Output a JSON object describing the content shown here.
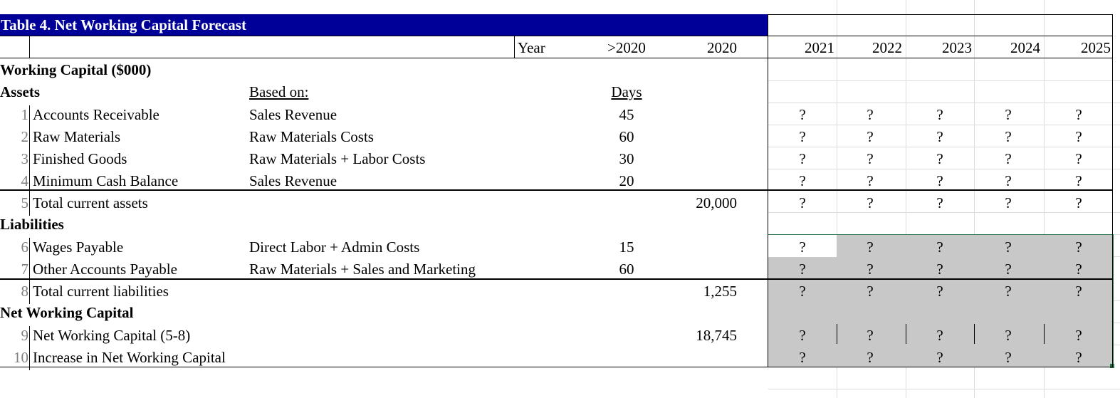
{
  "title": "Table 4. Net Working Capital Forecast",
  "header": {
    "year_label": "Year",
    "col_prior": ">2020",
    "col_base": "2020",
    "years": [
      "2021",
      "2022",
      "2023",
      "2024",
      "2025"
    ]
  },
  "sections": {
    "working_capital": "Working Capital ($000)",
    "assets": "Assets",
    "liabilities": "Liabilities",
    "net_working_capital": "Net Working Capital"
  },
  "subheaders": {
    "based_on": "Based on:",
    "days": "Days"
  },
  "rows": [
    {
      "num": "1",
      "label": "Accounts Receivable",
      "basis": "Sales Revenue",
      "days": "45",
      "base": "",
      "forecast": [
        "?",
        "?",
        "?",
        "?",
        "?"
      ]
    },
    {
      "num": "2",
      "label": "Raw Materials",
      "basis": "Raw Materials Costs",
      "days": "60",
      "base": "",
      "forecast": [
        "?",
        "?",
        "?",
        "?",
        "?"
      ]
    },
    {
      "num": "3",
      "label": "Finished Goods",
      "basis": "Raw Materials + Labor Costs",
      "days": "30",
      "base": "",
      "forecast": [
        "?",
        "?",
        "?",
        "?",
        "?"
      ]
    },
    {
      "num": "4",
      "label": "Minimum Cash Balance",
      "basis": "Sales Revenue",
      "days": "20",
      "base": "",
      "forecast": [
        "?",
        "?",
        "?",
        "?",
        "?"
      ]
    },
    {
      "num": "5",
      "label": "Total current assets",
      "basis": "",
      "days": "",
      "base": "20,000",
      "forecast": [
        "?",
        "?",
        "?",
        "?",
        "?"
      ]
    },
    {
      "num": "6",
      "label": "Wages Payable",
      "basis": "Direct Labor + Admin Costs",
      "days": "15",
      "base": "",
      "forecast": [
        "?",
        "?",
        "?",
        "?",
        "?"
      ]
    },
    {
      "num": "7",
      "label": "Other Accounts Payable",
      "basis": "Raw Materials + Sales and Marketing",
      "days": "60",
      "base": "",
      "forecast": [
        "?",
        "?",
        "?",
        "?",
        "?"
      ]
    },
    {
      "num": "8",
      "label": "Total current liabilities",
      "basis": "",
      "days": "",
      "base": "1,255",
      "forecast": [
        "?",
        "?",
        "?",
        "?",
        "?"
      ]
    },
    {
      "num": "9",
      "label": "Net Working Capital (5-8)",
      "basis": "",
      "days": "",
      "base": "18,745",
      "forecast": [
        "?",
        "?",
        "?",
        "?",
        "?"
      ]
    },
    {
      "num": "10",
      "label": "Increase in Net Working Capital",
      "basis": "",
      "days": "",
      "base": "",
      "forecast": [
        "?",
        "?",
        "?",
        "?",
        "?"
      ]
    }
  ],
  "colors": {
    "title_bg": "#000099",
    "title_fg": "#ffffff",
    "selection_fill": "#c8c8c8",
    "selection_border": "#217346",
    "gridline": "#dcdcdc"
  }
}
